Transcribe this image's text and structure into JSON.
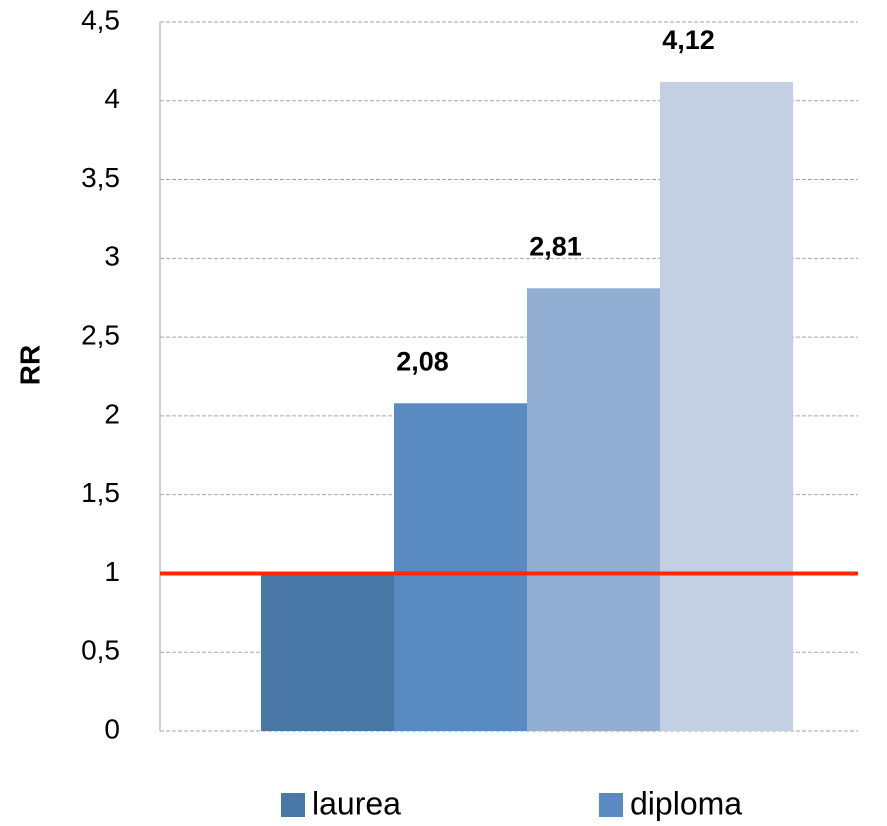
{
  "chart_data": {
    "type": "bar",
    "y_label": "RR",
    "series": [
      {
        "name": "laurea",
        "color": "#4a78a6",
        "values": [
          1
        ]
      },
      {
        "name": "diploma",
        "color": "#5a8bc0",
        "values": [
          2.08
        ],
        "value_labels": [
          "2,08"
        ]
      },
      {
        "color": "#91aed3",
        "values": [
          2.81
        ],
        "value_labels": [
          "2,81"
        ]
      },
      {
        "color": "#c3cfe3",
        "values": [
          4.12
        ],
        "value_labels": [
          "4,12"
        ]
      }
    ],
    "ylim": [
      0,
      4.5
    ],
    "yticks": [
      0,
      {
        "value": 0.5,
        "label": "0,5"
      },
      1,
      {
        "value": 1.5,
        "label": "1,5"
      },
      2,
      {
        "value": 2.5,
        "label": "2,5"
      },
      3,
      {
        "value": 3.5,
        "label": "3,5"
      },
      4,
      {
        "value": 4.5,
        "label": "4,5"
      }
    ],
    "grid": true,
    "reference_line": {
      "value": 1,
      "color": "#ff2a00"
    }
  }
}
